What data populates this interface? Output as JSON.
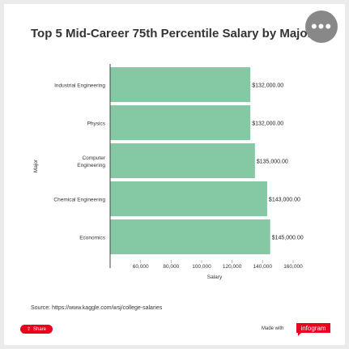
{
  "title": "Top 5 Mid-Career 75th Percentile Salary by Major",
  "source": "Source: https://www.kaggle.com/wsj/college-salaries",
  "share_label": "Share",
  "made_with": "Made with",
  "brand": "infogram",
  "colors": {
    "bar": "#85c9a4",
    "accent": "#e8001c",
    "more_button": "#888888"
  },
  "chart_data": {
    "type": "bar",
    "orientation": "horizontal",
    "categories": [
      "Industrial Engineering",
      "Physics",
      "Computer Engineering",
      "Chemical Engineering",
      "Economics"
    ],
    "category_labels": [
      [
        "Industrial Engineering"
      ],
      [
        "Physics"
      ],
      [
        "Computer",
        "Engineering"
      ],
      [
        "Chemical Engineering"
      ],
      [
        "Economics"
      ]
    ],
    "values": [
      132000,
      132000,
      135000,
      143000,
      145000
    ],
    "data_labels": [
      "$132,000.00",
      "$132,000.00",
      "$135,000.00",
      "$143,000.00",
      "$145,000.00"
    ],
    "xlabel": "Salary",
    "ylabel": "Major",
    "xticks": [
      60000,
      80000,
      100000,
      120000,
      140000,
      160000
    ],
    "xtick_labels": [
      "60,000",
      "80,000",
      "100,000",
      "120,000",
      "140,000",
      "160,000"
    ],
    "xlim": [
      40000,
      168000
    ],
    "grid": false,
    "legend": "none"
  }
}
